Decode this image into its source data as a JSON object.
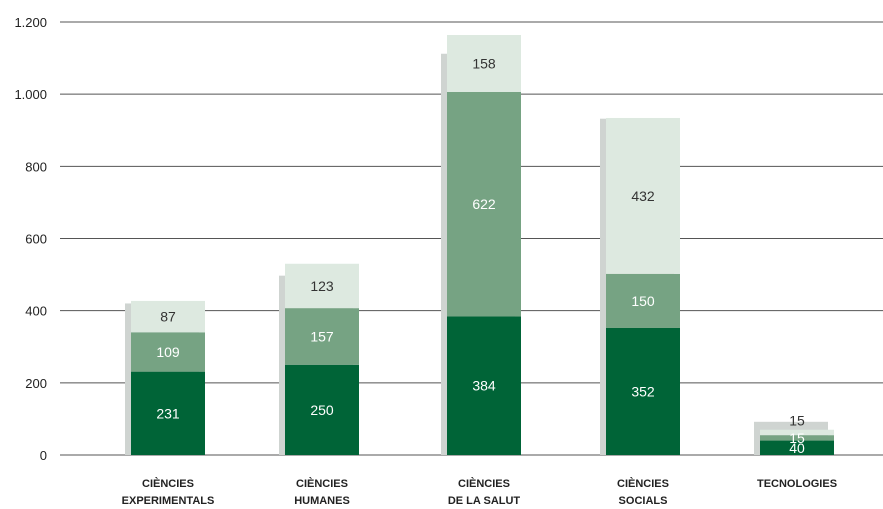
{
  "chart_data": {
    "type": "bar",
    "stacked": true,
    "categories": [
      [
        "CIÈNCIES",
        "EXPERIMENTALS"
      ],
      [
        "CIÈNCIES",
        "HUMANES"
      ],
      [
        "CIÈNCIES",
        "DE LA SALUT"
      ],
      [
        "CIÈNCIES",
        "SOCIALS"
      ],
      [
        "TECNOLOGIES"
      ]
    ],
    "series": [
      {
        "values": [
          231,
          250,
          384,
          352,
          40
        ],
        "color": "#006437",
        "label_color": "#ffffff"
      },
      {
        "values": [
          109,
          157,
          622,
          150,
          15
        ],
        "color": "#76a383",
        "label_color": "#ffffff"
      },
      {
        "values": [
          87,
          123,
          158,
          432,
          15
        ],
        "color": "#dde9e0",
        "label_color": "#333333"
      }
    ],
    "shadow_values": [
      420,
      497,
      1112,
      932,
      92
    ],
    "shadow_color": "#cfd4d1",
    "ylim": [
      0,
      1200
    ],
    "yticks": [
      0,
      200,
      400,
      600,
      800,
      1000,
      1200
    ],
    "ytick_labels": [
      "0",
      "200",
      "400",
      "600",
      "800",
      "1.000",
      "1.200"
    ],
    "grid": true,
    "grid_color": "#555555",
    "legend": "none"
  }
}
